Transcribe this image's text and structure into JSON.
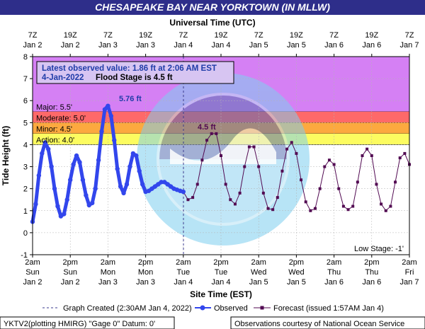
{
  "title": "CHESAPEAKE BAY NEAR YORKTOWN (IN MLLW)",
  "top_axis_title": "Universal Time (UTC)",
  "bottom_axis_title": "Site Time (EST)",
  "y_axis_title": "Tide Height (ft)",
  "top_ticks": [
    {
      "l1": "7Z",
      "l2": "Jan 2"
    },
    {
      "l1": "19Z",
      "l2": "Jan 2"
    },
    {
      "l1": "7Z",
      "l2": "Jan 3"
    },
    {
      "l1": "19Z",
      "l2": "Jan 3"
    },
    {
      "l1": "7Z",
      "l2": "Jan 4"
    },
    {
      "l1": "19Z",
      "l2": "Jan 4"
    },
    {
      "l1": "7Z",
      "l2": "Jan 5"
    },
    {
      "l1": "19Z",
      "l2": "Jan 5"
    },
    {
      "l1": "7Z",
      "l2": "Jan 6"
    },
    {
      "l1": "19Z",
      "l2": "Jan 6"
    },
    {
      "l1": "7Z",
      "l2": "Jan 7"
    }
  ],
  "bottom_ticks": [
    {
      "l1": "2am",
      "l2": "Sun",
      "l3": "Jan 2"
    },
    {
      "l1": "2pm",
      "l2": "Sun",
      "l3": "Jan 2"
    },
    {
      "l1": "2am",
      "l2": "Mon",
      "l3": "Jan 3"
    },
    {
      "l1": "2pm",
      "l2": "Mon",
      "l3": "Jan 3"
    },
    {
      "l1": "2am",
      "l2": "Tue",
      "l3": "Jan 4"
    },
    {
      "l1": "2pm",
      "l2": "Tue",
      "l3": "Jan 4"
    },
    {
      "l1": "2am",
      "l2": "Wed",
      "l3": "Jan 5"
    },
    {
      "l1": "2pm",
      "l2": "Wed",
      "l3": "Jan 5"
    },
    {
      "l1": "2am",
      "l2": "Thu",
      "l3": "Jan 6"
    },
    {
      "l1": "2pm",
      "l2": "Thu",
      "l3": "Jan 6"
    },
    {
      "l1": "2am",
      "l2": "Fri",
      "l3": "Jan 7"
    }
  ],
  "info_box": {
    "line1": "Latest observed value: 1.86 ft at 2:06 AM EST",
    "line2_date": "4-Jan-2022",
    "line2_flood": "Flood Stage is 4.5 ft"
  },
  "stages": [
    {
      "label": "Major: 5.5'",
      "from": 5.5,
      "to": 8,
      "color": "#d580f4"
    },
    {
      "label": "Moderate: 5.0'",
      "from": 5.0,
      "to": 5.5,
      "color": "#fe6969"
    },
    {
      "label": "Minor: 4.5'",
      "from": 4.5,
      "to": 5.0,
      "color": "#fca93f"
    },
    {
      "label": "Action: 4.0'",
      "from": 4.0,
      "to": 4.5,
      "color": "#fcfc60"
    }
  ],
  "low_stage_label": "Low Stage: -1'",
  "peak_observed_label": "5.76 ft",
  "peak_forecast_label": "4.5 ft",
  "legend": {
    "created": "Graph Created (2:30AM Jan 4, 2022)",
    "observed": "Observed",
    "forecast": "Forecast (issued 1:57AM Jan 4)"
  },
  "footer_left": "YKTV2(plotting HMIRG) \"Gage 0\" Datum: 0'",
  "footer_right": "Observations courtesy of National Ocean Service",
  "colors": {
    "title_bg": "#2e2e8a",
    "observed": "#3246ec",
    "forecast": "#520a52",
    "accent_text": "#1f3ca8"
  },
  "chart_data": {
    "type": "line",
    "x_unit": "hours from Jan 2 2am EST",
    "ylim": [
      -1,
      8
    ],
    "xlim": [
      0,
      120
    ],
    "series": [
      {
        "name": "Observed",
        "x": [
          0,
          1,
          2,
          3,
          4,
          5,
          6,
          7,
          8,
          9,
          10,
          11,
          12,
          13,
          14,
          15,
          16,
          17,
          18,
          19,
          20,
          21,
          22,
          23,
          24,
          25,
          26,
          27,
          28,
          29,
          30,
          31,
          32,
          33,
          34,
          35,
          36,
          37,
          38,
          39,
          40,
          41,
          42,
          43,
          44,
          45,
          46,
          47,
          48
        ],
        "y": [
          0.5,
          1.3,
          2.6,
          3.6,
          4.1,
          3.8,
          3.0,
          2.0,
          1.2,
          0.75,
          0.85,
          1.5,
          2.4,
          3.1,
          3.5,
          3.2,
          2.4,
          1.7,
          1.25,
          1.35,
          2.0,
          3.3,
          4.6,
          5.6,
          5.76,
          5.3,
          4.2,
          2.9,
          2.1,
          1.8,
          2.2,
          3.0,
          3.6,
          3.5,
          2.8,
          2.2,
          1.86,
          1.9,
          2.0,
          2.1,
          2.2,
          2.3,
          2.3,
          2.2,
          2.1,
          2.0,
          1.95,
          1.9,
          1.86
        ]
      },
      {
        "name": "Forecast (issued 1:57AM Jan 4)",
        "x": [
          48,
          49.5,
          51,
          52.5,
          54,
          55.5,
          57,
          58.5,
          60,
          61.5,
          63,
          64.5,
          66,
          67.5,
          69,
          70.5,
          72,
          73.5,
          75,
          76.5,
          78,
          79.5,
          81,
          82.5,
          84,
          85.5,
          87,
          88.5,
          90,
          91.5,
          93,
          94.5,
          96,
          97.5,
          99,
          100.5,
          102,
          103.5,
          105,
          106.5,
          108,
          109.5,
          111,
          112.5,
          114,
          115.5,
          117,
          118.5,
          120
        ],
        "y": [
          1.86,
          1.5,
          1.6,
          2.2,
          3.3,
          4.2,
          4.5,
          4.5,
          3.5,
          2.2,
          1.5,
          1.3,
          1.8,
          3.0,
          3.9,
          3.9,
          3.0,
          1.8,
          1.1,
          1.05,
          1.6,
          2.8,
          3.8,
          4.1,
          3.6,
          2.4,
          1.4,
          1.0,
          1.1,
          2.0,
          3.0,
          3.3,
          3.1,
          2.0,
          1.2,
          1.05,
          1.2,
          2.3,
          3.5,
          3.8,
          3.5,
          2.2,
          1.3,
          1.0,
          1.2,
          2.3,
          3.4,
          3.6,
          3.1
        ]
      }
    ]
  }
}
